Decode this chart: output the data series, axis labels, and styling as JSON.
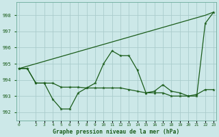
{
  "title": "Graphe pression niveau de la mer (hPa)",
  "background_color": "#cce8e8",
  "grid_color": "#aacccc",
  "line_color": "#1a5c1a",
  "xlim": [
    -0.3,
    23.3
  ],
  "ylim": [
    991.5,
    998.8
  ],
  "yticks": [
    992,
    993,
    994,
    995,
    996,
    997,
    998
  ],
  "xticks": [
    0,
    2,
    3,
    4,
    5,
    6,
    7,
    8,
    9,
    10,
    11,
    12,
    13,
    14,
    15,
    16,
    17,
    18,
    19,
    20,
    21,
    22,
    23
  ],
  "hours": [
    0,
    1,
    2,
    3,
    4,
    5,
    6,
    7,
    8,
    9,
    10,
    11,
    12,
    13,
    14,
    15,
    16,
    17,
    18,
    19,
    20,
    21,
    22,
    23
  ],
  "s_rise": [
    994.7,
    994.85,
    995.0,
    995.15,
    995.3,
    995.45,
    995.6,
    995.75,
    995.9,
    996.05,
    996.2,
    996.35,
    996.5,
    996.65,
    996.8,
    996.95,
    997.1,
    997.25,
    997.4,
    997.55,
    997.7,
    997.85,
    998.0,
    998.2
  ],
  "s_valley": [
    994.7,
    994.7,
    993.8,
    993.8,
    992.8,
    992.2,
    992.2,
    993.2,
    993.5,
    993.8,
    995.0,
    995.8,
    995.5,
    995.5,
    994.6,
    993.2,
    993.3,
    993.7,
    993.3,
    993.2,
    993.0,
    993.0,
    997.5,
    998.2
  ],
  "s_flat": [
    994.7,
    994.7,
    993.8,
    993.8,
    993.8,
    993.55,
    993.55,
    993.55,
    993.5,
    993.5,
    993.5,
    993.5,
    993.5,
    993.4,
    993.3,
    993.2,
    993.2,
    993.2,
    993.0,
    993.0,
    993.0,
    993.1,
    993.4,
    993.4
  ]
}
